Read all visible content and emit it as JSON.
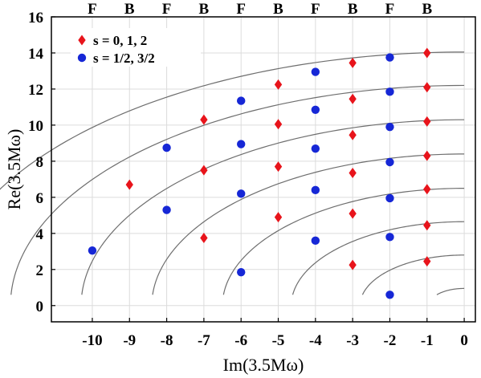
{
  "chart_data": {
    "type": "scatter",
    "xlabel": "Im(3.5Mω)",
    "ylabel": "Re(3.5Mω)",
    "xlim": [
      -11.1,
      0.3
    ],
    "ylim": [
      -0.9,
      16
    ],
    "x_ticks": [
      -10,
      -9,
      -8,
      -7,
      -6,
      -5,
      -4,
      -3,
      -2,
      -1,
      0
    ],
    "y_ticks": [
      0,
      2,
      4,
      6,
      8,
      10,
      12,
      14,
      16
    ],
    "grid": true,
    "legend_position": "top-left",
    "top_labels": [
      {
        "x": -10,
        "label": "F"
      },
      {
        "x": -9,
        "label": "B"
      },
      {
        "x": -8,
        "label": "F"
      },
      {
        "x": -7,
        "label": "B"
      },
      {
        "x": -6,
        "label": "F"
      },
      {
        "x": -5,
        "label": "B"
      },
      {
        "x": -4,
        "label": "F"
      },
      {
        "x": -3,
        "label": "B"
      },
      {
        "x": -2,
        "label": "F"
      },
      {
        "x": -1,
        "label": "B"
      }
    ],
    "curves": [
      {
        "radius": 0.95
      },
      {
        "radius": 2.8
      },
      {
        "radius": 4.65
      },
      {
        "radius": 6.5
      },
      {
        "radius": 8.4
      },
      {
        "radius": 10.3
      },
      {
        "radius": 12.2
      },
      {
        "radius": 14.05
      }
    ],
    "series": [
      {
        "name": "s = 0, 1, 2",
        "color": "#e8141b",
        "marker": "diamond",
        "points": [
          [
            -1,
            14.0
          ],
          [
            -1,
            12.1
          ],
          [
            -1,
            10.2
          ],
          [
            -1,
            8.3
          ],
          [
            -1,
            6.45
          ],
          [
            -1,
            4.45
          ],
          [
            -1,
            2.45
          ],
          [
            -3,
            13.45
          ],
          [
            -3,
            11.45
          ],
          [
            -3,
            9.45
          ],
          [
            -3,
            7.35
          ],
          [
            -3,
            5.1
          ],
          [
            -3,
            2.25
          ],
          [
            -5,
            12.25
          ],
          [
            -5,
            10.05
          ],
          [
            -5,
            7.7
          ],
          [
            -5,
            4.9
          ],
          [
            -7,
            10.3
          ],
          [
            -7,
            7.5
          ],
          [
            -7,
            3.75
          ],
          [
            -9,
            6.7
          ]
        ]
      },
      {
        "name": "s = 1/2, 3/2",
        "color": "#1627d6",
        "marker": "circle",
        "points": [
          [
            -2,
            13.75
          ],
          [
            -2,
            11.85
          ],
          [
            -2,
            9.9
          ],
          [
            -2,
            7.95
          ],
          [
            -2,
            5.95
          ],
          [
            -2,
            3.8
          ],
          [
            -2,
            0.6
          ],
          [
            -4,
            12.95
          ],
          [
            -4,
            10.85
          ],
          [
            -4,
            8.7
          ],
          [
            -4,
            6.4
          ],
          [
            -4,
            3.6
          ],
          [
            -6,
            11.35
          ],
          [
            -6,
            8.95
          ],
          [
            -6,
            6.2
          ],
          [
            -6,
            1.85
          ],
          [
            -8,
            8.75
          ],
          [
            -8,
            5.3
          ],
          [
            -10,
            3.05
          ]
        ]
      }
    ]
  }
}
